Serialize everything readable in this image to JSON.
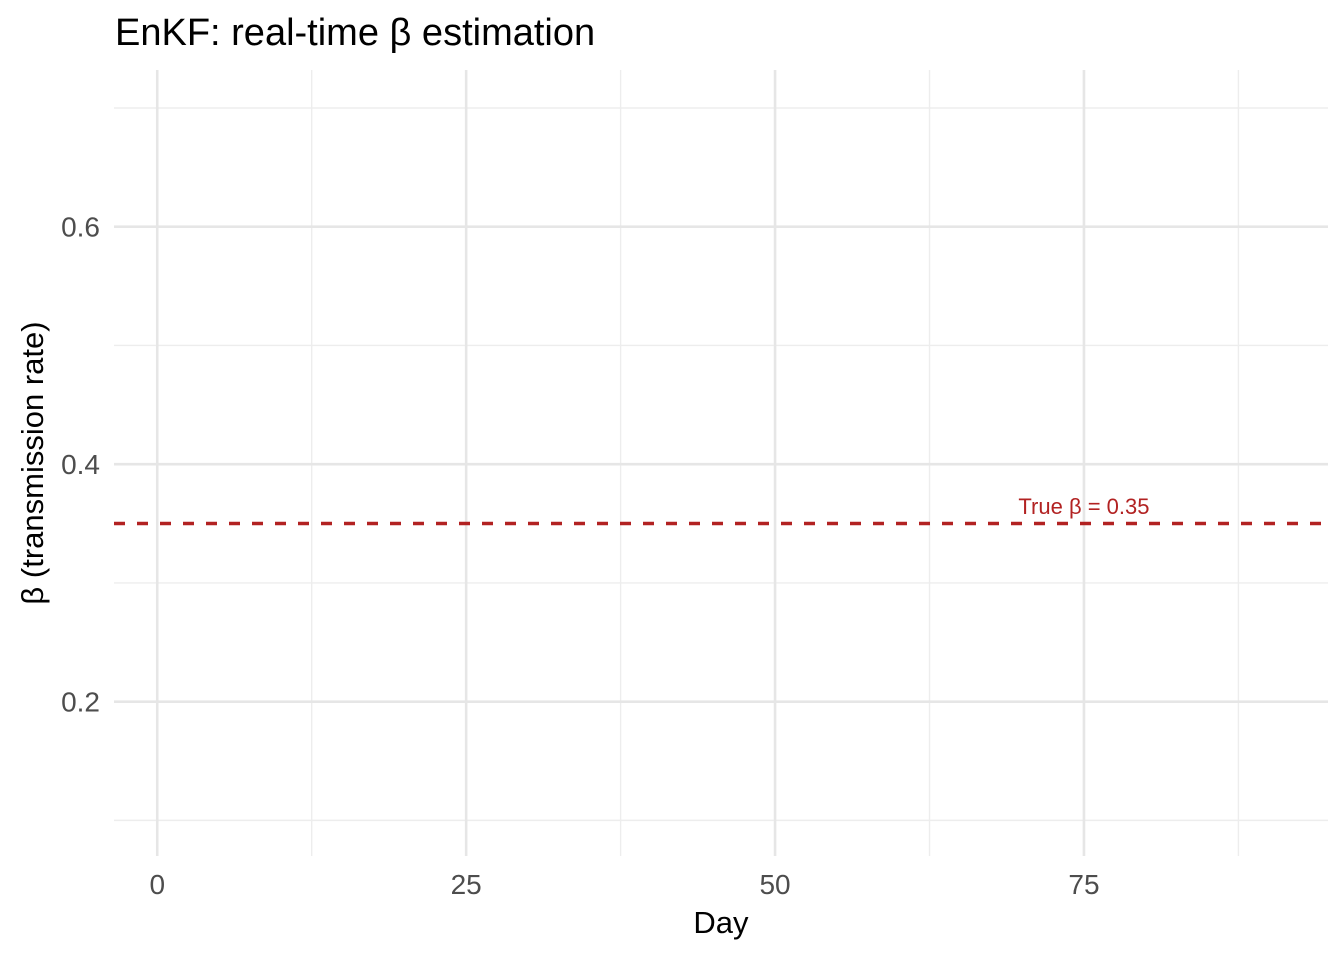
{
  "chart_data": {
    "type": "line",
    "title": "EnKF: real-time β estimation",
    "xlabel": "Day",
    "ylabel": "β (transmission rate)",
    "xlim": [
      -3.5,
      94.75
    ],
    "ylim": [
      0.07,
      0.732
    ],
    "grid": "major-and-minor",
    "legend": "none",
    "x_ticks": [
      {
        "value": 0,
        "label": "0"
      },
      {
        "value": 25,
        "label": "25"
      },
      {
        "value": 50,
        "label": "50"
      },
      {
        "value": 75,
        "label": "75"
      }
    ],
    "y_ticks": [
      {
        "value": 0.2,
        "label": "0.2"
      },
      {
        "value": 0.4,
        "label": "0.4"
      },
      {
        "value": 0.6,
        "label": "0.6"
      }
    ],
    "x_minor_ticks": [
      12.5,
      37.5,
      62.5,
      87.5
    ],
    "y_minor_ticks": [
      0.1,
      0.3,
      0.5,
      0.7
    ],
    "series": [],
    "reference_line": {
      "y": 0.35,
      "label": "True β = 0.35",
      "style": "dashed",
      "label_x": 75
    }
  },
  "colors": {
    "background": "#FFFFFF",
    "title": "#000000",
    "axis_title": "#000000",
    "tick_label": "#4D4D4D",
    "grid_major": "#E6E6E6",
    "grid_minor": "#EDEDED",
    "reference_line": "#B22222"
  }
}
